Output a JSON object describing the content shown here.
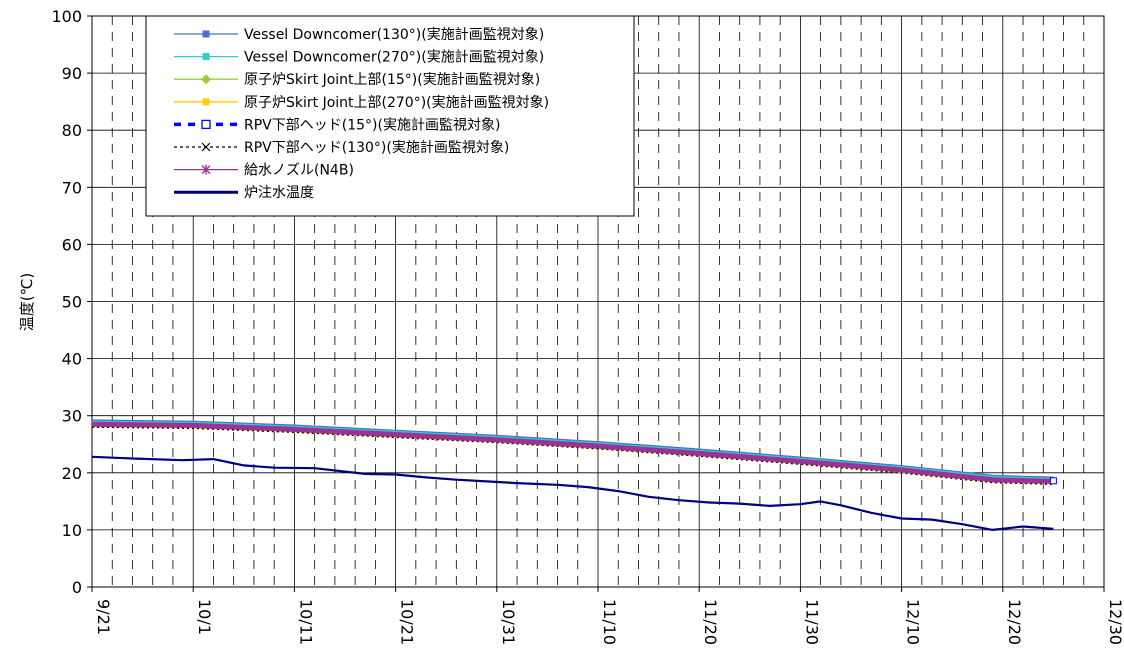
{
  "chart_data": {
    "type": "line",
    "title": "",
    "xlabel": "",
    "ylabel": "温度(℃)",
    "ylim": [
      0,
      100
    ],
    "yticks": [
      0,
      10,
      20,
      30,
      40,
      50,
      60,
      70,
      80,
      90,
      100
    ],
    "xlim": [
      "2013-09-21",
      "2013-12-30"
    ],
    "xtick_labels": [
      "9/21",
      "10/1",
      "10/11",
      "10/21",
      "10/31",
      "11/10",
      "11/20",
      "11/30",
      "12/10",
      "12/20",
      "12/30"
    ],
    "grid": true,
    "legend_position": "top-left",
    "series": [
      {
        "name": "Vessel Downcomer(130°)(実施計画監視対象)",
        "color": "#4472c4",
        "marker": "square",
        "line": "solid",
        "x": [
          "09-21",
          "10-01",
          "10-11",
          "10-21",
          "10-31",
          "11-10",
          "11-20",
          "11-30",
          "12-10",
          "12-19",
          "12-25"
        ],
        "y": [
          29.0,
          28.8,
          28.1,
          27.2,
          26.3,
          25.2,
          23.9,
          22.5,
          21.0,
          19.3,
          19.0
        ]
      },
      {
        "name": "Vessel Downcomer(270°)(実施計画監視対象)",
        "color": "#33cccc",
        "marker": "square",
        "line": "solid",
        "x": [
          "09-21",
          "10-01",
          "10-11",
          "10-21",
          "10-31",
          "11-10",
          "11-20",
          "11-30",
          "12-10",
          "12-19",
          "12-25"
        ],
        "y": [
          28.8,
          28.6,
          27.9,
          27.0,
          26.1,
          25.0,
          23.7,
          22.3,
          20.8,
          19.1,
          18.8
        ]
      },
      {
        "name": "原子炉Skirt Joint上部(15°)(実施計画監視対象)",
        "color": "#9acd32",
        "marker": "diamond",
        "line": "solid",
        "x": [
          "09-21",
          "10-01",
          "10-11",
          "10-21",
          "10-31",
          "11-10",
          "11-20",
          "11-30",
          "12-10",
          "12-19",
          "12-25"
        ],
        "y": [
          28.5,
          28.3,
          27.6,
          26.7,
          25.8,
          24.7,
          23.4,
          22.0,
          20.5,
          18.8,
          18.5
        ]
      },
      {
        "name": "原子炉Skirt Joint上部(270°)(実施計画監視対象)",
        "color": "#ffcc00",
        "marker": "square",
        "line": "solid",
        "x": [
          "09-21",
          "10-01",
          "10-11",
          "10-21",
          "10-31",
          "11-10",
          "11-20",
          "11-30",
          "12-10",
          "12-19",
          "12-25"
        ],
        "y": [
          28.3,
          28.1,
          27.4,
          26.5,
          25.6,
          24.5,
          23.2,
          21.8,
          20.3,
          18.6,
          18.3
        ]
      },
      {
        "name": "RPV下部ヘッド(15°)(実施計画監視対象)",
        "color": "#0000ff",
        "marker": "square-open",
        "line": "dashed",
        "x": [
          "09-21",
          "10-01",
          "10-11",
          "10-21",
          "10-31",
          "11-10",
          "11-20",
          "11-30",
          "12-10",
          "12-19",
          "12-25"
        ],
        "y": [
          28.6,
          28.4,
          27.7,
          26.8,
          25.9,
          24.8,
          23.5,
          22.1,
          20.6,
          18.9,
          18.6
        ]
      },
      {
        "name": "RPV下部ヘッド(130°)(実施計画監視対象)",
        "color": "#000000",
        "marker": "x",
        "line": "dotted",
        "x": [
          "09-21",
          "10-01",
          "10-11",
          "10-21",
          "10-31",
          "11-10",
          "11-20",
          "11-30",
          "12-10",
          "12-19",
          "12-25"
        ],
        "y": [
          28.0,
          27.8,
          27.1,
          26.2,
          25.3,
          24.2,
          22.9,
          21.5,
          20.0,
          18.3,
          18.0
        ]
      },
      {
        "name": "給水ノズル(N4B)",
        "color": "#993399",
        "marker": "star",
        "line": "solid",
        "x": [
          "09-21",
          "10-01",
          "10-11",
          "10-21",
          "10-31",
          "11-10",
          "11-20",
          "11-30",
          "12-10",
          "12-19",
          "12-25"
        ],
        "y": [
          28.5,
          28.3,
          27.6,
          26.7,
          25.8,
          24.7,
          23.4,
          22.0,
          20.5,
          18.8,
          18.5
        ]
      },
      {
        "name": "炉注水温度",
        "color": "#000080",
        "marker": "none",
        "line": "solid",
        "x": [
          "09-21",
          "09-25",
          "09-30",
          "10-03",
          "10-06",
          "10-09",
          "10-13",
          "10-18",
          "10-21",
          "10-24",
          "10-27",
          "10-30",
          "11-02",
          "11-06",
          "11-09",
          "11-12",
          "11-15",
          "11-18",
          "11-21",
          "11-24",
          "11-27",
          "11-30",
          "12-02",
          "12-04",
          "12-07",
          "12-10",
          "12-13",
          "12-16",
          "12-19",
          "12-22",
          "12-25"
        ],
        "y": [
          22.8,
          22.5,
          22.2,
          22.4,
          21.3,
          20.9,
          20.8,
          19.8,
          19.7,
          19.2,
          18.8,
          18.5,
          18.2,
          17.9,
          17.5,
          16.8,
          15.8,
          15.2,
          14.8,
          14.6,
          14.2,
          14.5,
          15.0,
          14.3,
          13.0,
          12.0,
          11.8,
          11.0,
          10.0,
          10.6,
          10.2
        ]
      }
    ]
  }
}
